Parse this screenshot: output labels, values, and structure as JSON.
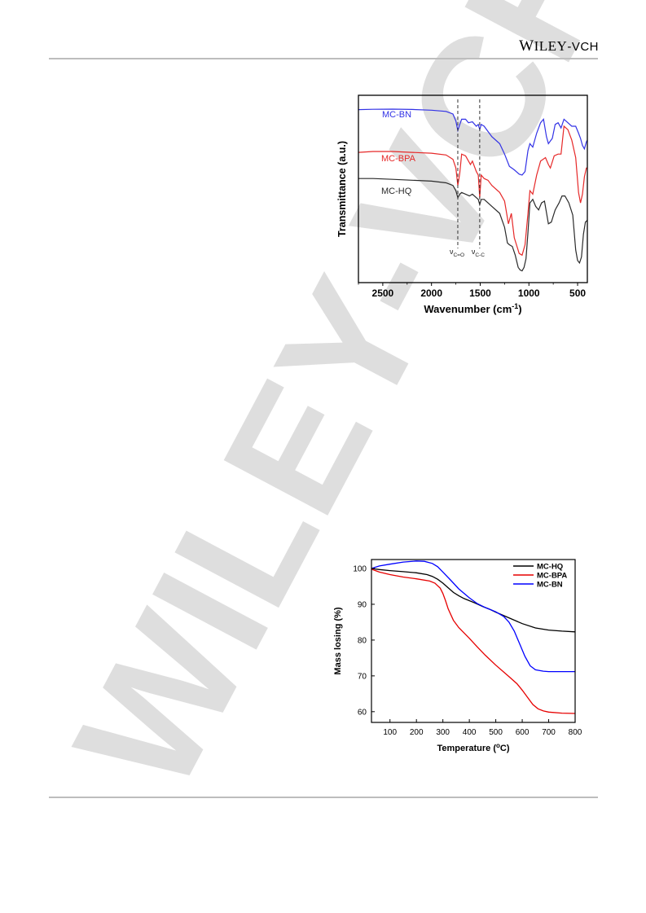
{
  "header": {
    "logo_w": "W",
    "logo_iley": "ILEY",
    "logo_suffix": "-VCH"
  },
  "watermark": {
    "text": "WILEY-VCH",
    "color": "#d9d9d9"
  },
  "figures": {
    "ftir": {
      "xlabel_main": "Wavenumber (cm",
      "xlabel_sup": "-1",
      "xlabel_end": ")",
      "ylabel": "Transmittance (a.u.)",
      "annot_co_main": "ν",
      "annot_co_sub": "C=O",
      "annot_cc_main": "ν",
      "annot_cc_sub": "C-C"
    },
    "tga": {
      "xlabel_main": "Temperature (",
      "xlabel_sup": "o",
      "xlabel_end": "C)",
      "ylabel": "Mass losing (%)"
    }
  },
  "chart_data": [
    {
      "type": "line",
      "xlabel": "Wavenumber (cm-1)",
      "ylabel": "Transmittance (a.u.)",
      "xlim": [
        2750,
        400
      ],
      "x_reversed": true,
      "xticks": [
        2500,
        2000,
        1500,
        1000,
        500
      ],
      "y_ticks_shown": false,
      "annotations": [
        {
          "text": "νC=O",
          "x": 1730
        },
        {
          "text": "νC-C",
          "x": 1505
        }
      ],
      "series": [
        {
          "name": "MC-BN",
          "color": "#3232e6",
          "x": [
            2750,
            2600,
            2400,
            2200,
            2000,
            1850,
            1780,
            1750,
            1730,
            1710,
            1690,
            1650,
            1620,
            1580,
            1540,
            1520,
            1505,
            1490,
            1460,
            1420,
            1380,
            1300,
            1250,
            1200,
            1150,
            1100,
            1070,
            1040,
            1010,
            990,
            960,
            920,
            880,
            850,
            820,
            800,
            760,
            730,
            700,
            670,
            640,
            600,
            560,
            520,
            490,
            470,
            450,
            430,
            410,
            400
          ],
          "y": [
            0.955,
            0.957,
            0.958,
            0.956,
            0.952,
            0.945,
            0.93,
            0.89,
            0.835,
            0.87,
            0.9,
            0.9,
            0.88,
            0.885,
            0.86,
            0.87,
            0.84,
            0.87,
            0.86,
            0.83,
            0.8,
            0.76,
            0.7,
            0.63,
            0.61,
            0.585,
            0.58,
            0.6,
            0.72,
            0.76,
            0.74,
            0.82,
            0.88,
            0.9,
            0.8,
            0.76,
            0.79,
            0.87,
            0.88,
            0.85,
            0.9,
            0.88,
            0.86,
            0.86,
            0.82,
            0.79,
            0.75,
            0.73,
            0.77,
            0.78
          ]
        },
        {
          "name": "MC-BPA",
          "color": "#e62828",
          "x": [
            2750,
            2600,
            2400,
            2200,
            2000,
            1850,
            1780,
            1750,
            1730,
            1710,
            1690,
            1650,
            1600,
            1580,
            1540,
            1520,
            1505,
            1490,
            1460,
            1420,
            1380,
            1300,
            1250,
            1210,
            1180,
            1150,
            1100,
            1070,
            1040,
            1010,
            990,
            960,
            920,
            880,
            830,
            800,
            780,
            740,
            700,
            670,
            640,
            600,
            560,
            520,
            490,
            470,
            450,
            430,
            410,
            400
          ],
          "y": [
            0.71,
            0.715,
            0.715,
            0.71,
            0.705,
            0.695,
            0.67,
            0.62,
            0.52,
            0.59,
            0.7,
            0.69,
            0.64,
            0.66,
            0.6,
            0.58,
            0.45,
            0.58,
            0.56,
            0.55,
            0.52,
            0.48,
            0.43,
            0.3,
            0.36,
            0.22,
            0.13,
            0.12,
            0.18,
            0.36,
            0.49,
            0.47,
            0.58,
            0.66,
            0.68,
            0.64,
            0.62,
            0.69,
            0.7,
            0.7,
            0.86,
            0.84,
            0.78,
            0.68,
            0.48,
            0.42,
            0.47,
            0.57,
            0.62,
            0.62
          ]
        },
        {
          "name": "MC-HQ",
          "color": "#2a2a2a",
          "x": [
            2750,
            2600,
            2400,
            2200,
            2000,
            1850,
            1780,
            1750,
            1730,
            1710,
            1690,
            1650,
            1610,
            1580,
            1540,
            1520,
            1505,
            1490,
            1460,
            1420,
            1380,
            1300,
            1250,
            1220,
            1200,
            1170,
            1140,
            1110,
            1090,
            1070,
            1050,
            1030,
            1010,
            990,
            960,
            930,
            900,
            870,
            840,
            800,
            770,
            730,
            690,
            660,
            630,
            590,
            550,
            520,
            500,
            480,
            460,
            440,
            420,
            400
          ],
          "y": [
            0.56,
            0.56,
            0.555,
            0.55,
            0.545,
            0.535,
            0.52,
            0.49,
            0.45,
            0.47,
            0.48,
            0.47,
            0.46,
            0.47,
            0.45,
            0.44,
            0.41,
            0.44,
            0.44,
            0.42,
            0.4,
            0.36,
            0.28,
            0.19,
            0.18,
            0.17,
            0.12,
            0.05,
            0.035,
            0.03,
            0.05,
            0.1,
            0.25,
            0.42,
            0.44,
            0.4,
            0.38,
            0.42,
            0.43,
            0.3,
            0.31,
            0.38,
            0.42,
            0.46,
            0.46,
            0.42,
            0.35,
            0.15,
            0.09,
            0.075,
            0.11,
            0.24,
            0.31,
            0.32
          ]
        }
      ]
    },
    {
      "type": "line",
      "xlabel": "Temperature (oC)",
      "ylabel": "Mass losing (%)",
      "xlim": [
        30,
        800
      ],
      "ylim": [
        57,
        102.5
      ],
      "xticks": [
        100,
        200,
        300,
        400,
        500,
        600,
        700,
        800
      ],
      "yticks": [
        60,
        70,
        80,
        90,
        100
      ],
      "legend": "top-right",
      "series": [
        {
          "name": "MC-HQ",
          "color": "#000000",
          "x": [
            30,
            60,
            100,
            150,
            200,
            240,
            260,
            280,
            300,
            320,
            340,
            360,
            380,
            400,
            420,
            450,
            480,
            500,
            550,
            600,
            650,
            700,
            750,
            800
          ],
          "y": [
            100,
            99.7,
            99.4,
            99.1,
            98.8,
            98.3,
            97.8,
            97.0,
            95.9,
            94.6,
            93.3,
            92.4,
            91.6,
            91.0,
            90.4,
            89.4,
            88.5,
            87.8,
            86.2,
            84.6,
            83.4,
            82.8,
            82.5,
            82.3
          ]
        },
        {
          "name": "MC-BPA",
          "color": "#e60000",
          "x": [
            30,
            60,
            100,
            150,
            200,
            250,
            270,
            290,
            300,
            310,
            320,
            340,
            360,
            380,
            400,
            430,
            460,
            500,
            550,
            580,
            600,
            620,
            640,
            660,
            680,
            700,
            750,
            800
          ],
          "y": [
            99.8,
            99.0,
            98.3,
            97.6,
            97.1,
            96.5,
            95.9,
            94.5,
            93.0,
            91.0,
            88.7,
            85.5,
            83.5,
            82.0,
            80.5,
            78.1,
            75.8,
            73.0,
            69.8,
            67.8,
            66.0,
            64.0,
            62.0,
            60.8,
            60.2,
            59.9,
            59.6,
            59.5
          ]
        },
        {
          "name": "MC-BN",
          "color": "#0000ff",
          "x": [
            30,
            60,
            100,
            150,
            200,
            230,
            260,
            280,
            300,
            330,
            360,
            400,
            430,
            460,
            500,
            530,
            550,
            570,
            590,
            610,
            630,
            650,
            680,
            700,
            750,
            800
          ],
          "y": [
            100,
            100.7,
            101.2,
            101.8,
            102.1,
            102.0,
            101.4,
            100.5,
            99.0,
            96.7,
            94.3,
            91.8,
            90.2,
            89.1,
            87.9,
            86.6,
            85.0,
            82.5,
            79.0,
            75.5,
            72.8,
            71.7,
            71.3,
            71.2,
            71.2,
            71.2
          ]
        }
      ]
    }
  ]
}
